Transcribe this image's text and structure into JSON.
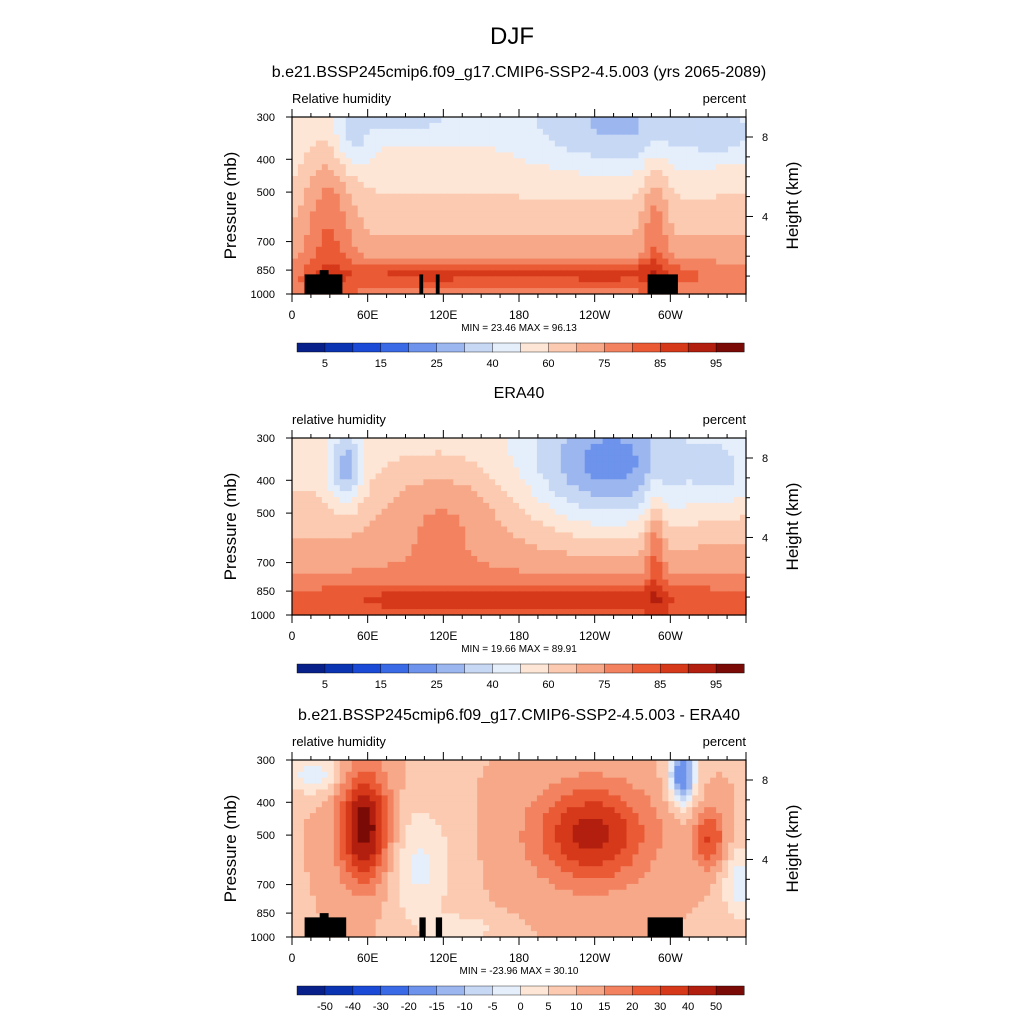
{
  "figure": {
    "title": "DJF"
  },
  "chart_data": [
    {
      "type": "heatmap",
      "title": "b.e21.BSSP245cmip6.f09_g17.CMIP6-SSP2-4.5.003 (yrs 2065-2089)",
      "left_label": "Relative humidity",
      "right_label": "percent",
      "ylabel": "Pressure (mb)",
      "ylabel_right": "Height (km)",
      "x_ticks": [
        "0",
        "60E",
        "120E",
        "180",
        "120W",
        "60W"
      ],
      "x_tick_positions": [
        0,
        60,
        120,
        180,
        240,
        300
      ],
      "xlim": [
        0,
        360
      ],
      "y_ticks": [
        "300",
        "400",
        "500",
        "700",
        "850",
        "1000"
      ],
      "y_tick_values": [
        300,
        400,
        500,
        700,
        850,
        1000
      ],
      "ylim": [
        1000,
        300
      ],
      "y_scale": "log",
      "right_ticks": [
        "8",
        "4"
      ],
      "right_tick_values": [
        8,
        4
      ],
      "stats": "MIN =  23.46   MAX =  96.13",
      "min": 23.46,
      "max": 96.13,
      "colorbar": {
        "labels": [
          "5",
          "15",
          "25",
          "40",
          "60",
          "75",
          "85",
          "95"
        ],
        "colors": [
          "#08208a",
          "#0b34b3",
          "#1a4ad6",
          "#3a6ae6",
          "#6d93ec",
          "#9cb7f0",
          "#c7d8f5",
          "#e5eefb",
          "#fde6d6",
          "#fbcab0",
          "#f7a888",
          "#f28260",
          "#ea5a35",
          "#d6391a",
          "#b31f0e",
          "#7a0a05"
        ]
      },
      "terrain": [
        [
          10,
          900
        ],
        [
          10,
          875
        ],
        [
          22,
          875
        ],
        [
          22,
          850
        ],
        [
          29,
          850
        ],
        [
          29,
          875
        ],
        [
          40,
          875
        ],
        [
          40,
          1000
        ],
        [
          10,
          1000
        ],
        [
          101,
          875
        ],
        [
          104,
          875
        ],
        [
          104,
          1000
        ],
        [
          101,
          1000
        ],
        [
          114,
          875
        ],
        [
          117,
          875
        ],
        [
          117,
          1000
        ],
        [
          114,
          1000
        ],
        [
          282,
          875
        ],
        [
          306,
          875
        ],
        [
          306,
          1000
        ],
        [
          282,
          1000
        ]
      ]
    },
    {
      "type": "heatmap",
      "title": "ERA40",
      "left_label": "relative humidity",
      "right_label": "percent",
      "ylabel": "Pressure (mb)",
      "ylabel_right": "Height (km)",
      "x_ticks": [
        "0",
        "60E",
        "120E",
        "180",
        "120W",
        "60W"
      ],
      "x_tick_positions": [
        0,
        60,
        120,
        180,
        240,
        300
      ],
      "xlim": [
        0,
        360
      ],
      "y_ticks": [
        "300",
        "400",
        "500",
        "700",
        "850",
        "1000"
      ],
      "y_tick_values": [
        300,
        400,
        500,
        700,
        850,
        1000
      ],
      "ylim": [
        1000,
        300
      ],
      "y_scale": "log",
      "right_ticks": [
        "8",
        "4"
      ],
      "right_tick_values": [
        8,
        4
      ],
      "stats": "MIN =  19.66   MAX =  89.91",
      "min": 19.66,
      "max": 89.91,
      "colorbar": {
        "labels": [
          "5",
          "15",
          "25",
          "40",
          "60",
          "75",
          "85",
          "95"
        ],
        "colors": [
          "#08208a",
          "#0b34b3",
          "#1a4ad6",
          "#3a6ae6",
          "#6d93ec",
          "#9cb7f0",
          "#c7d8f5",
          "#e5eefb",
          "#fde6d6",
          "#fbcab0",
          "#f7a888",
          "#f28260",
          "#ea5a35",
          "#d6391a",
          "#b31f0e",
          "#7a0a05"
        ]
      }
    },
    {
      "type": "heatmap",
      "title": "b.e21.BSSP245cmip6.f09_g17.CMIP6-SSP2-4.5.003 - ERA40",
      "left_label": "relative humidity",
      "right_label": "percent",
      "ylabel": "Pressure (mb)",
      "ylabel_right": "Height (km)",
      "x_ticks": [
        "0",
        "60E",
        "120E",
        "180",
        "120W",
        "60W"
      ],
      "x_tick_positions": [
        0,
        60,
        120,
        180,
        240,
        300
      ],
      "xlim": [
        0,
        360
      ],
      "y_ticks": [
        "300",
        "400",
        "500",
        "700",
        "850",
        "1000"
      ],
      "y_tick_values": [
        300,
        400,
        500,
        700,
        850,
        1000
      ],
      "ylim": [
        1000,
        300
      ],
      "y_scale": "log",
      "right_ticks": [
        "8",
        "4"
      ],
      "right_tick_values": [
        8,
        4
      ],
      "stats": "MIN = -23.96   MAX =  30.10",
      "min": -23.96,
      "max": 30.1,
      "colorbar": {
        "labels": [
          "-50",
          "-40",
          "-30",
          "-20",
          "-15",
          "-10",
          "-5",
          "0",
          "5",
          "10",
          "15",
          "20",
          "30",
          "40",
          "50"
        ],
        "colors": [
          "#08208a",
          "#0b34b3",
          "#1a4ad6",
          "#3a6ae6",
          "#6d93ec",
          "#9cb7f0",
          "#c7d8f5",
          "#e5eefb",
          "#fde6d6",
          "#fbcab0",
          "#f7a888",
          "#f28260",
          "#ea5a35",
          "#d6391a",
          "#b31f0e",
          "#7a0a05"
        ]
      },
      "terrain": [
        [
          10,
          900
        ],
        [
          10,
          875
        ],
        [
          22,
          875
        ],
        [
          22,
          850
        ],
        [
          29,
          850
        ],
        [
          29,
          875
        ],
        [
          43,
          875
        ],
        [
          43,
          1000
        ],
        [
          10,
          1000
        ],
        [
          101,
          875
        ],
        [
          106,
          875
        ],
        [
          106,
          1000
        ],
        [
          101,
          1000
        ],
        [
          114,
          875
        ],
        [
          119,
          875
        ],
        [
          119,
          1000
        ],
        [
          114,
          1000
        ],
        [
          282,
          875
        ],
        [
          310,
          875
        ],
        [
          310,
          1000
        ],
        [
          282,
          1000
        ]
      ]
    }
  ]
}
